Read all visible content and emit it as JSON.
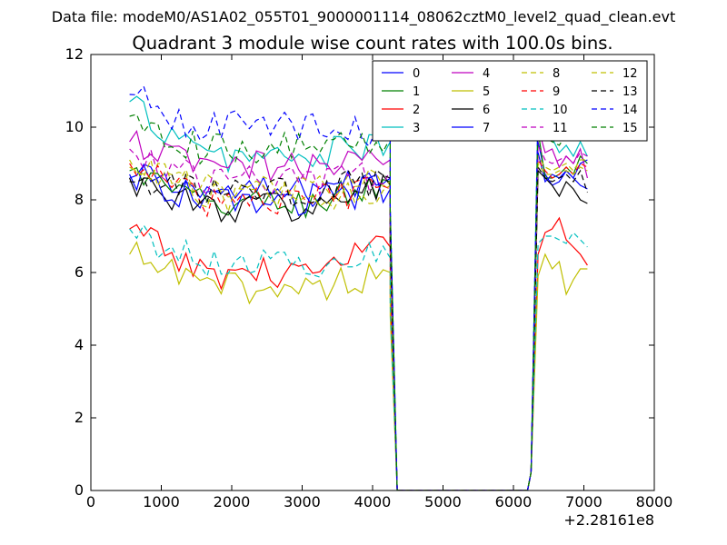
{
  "suptitle": "Data file: modeM0/AS1A02_055T01_9000001114_08062cztM0_level2_quad_clean.evt",
  "chart_data": {
    "type": "line",
    "title": "Quadrant 3 module wise count rates with 100.0s bins.",
    "xlabel": "",
    "ylabel": "",
    "x_offset_label": "+2.28161e8",
    "xlim": [
      0,
      8000
    ],
    "ylim": [
      0,
      12
    ],
    "xticks": [
      "0",
      "1000",
      "2000",
      "3000",
      "4000",
      "5000",
      "6000",
      "7000",
      "8000"
    ],
    "yticks": [
      "0",
      "2",
      "4",
      "6",
      "8",
      "10",
      "12"
    ],
    "grid": false,
    "legend_position": "top-right",
    "x_groups": {
      "segment1_start": 550,
      "segment1_step": 100,
      "segment1_count": 38,
      "drop": [
        4250,
        4350
      ],
      "segment2": [
        6250,
        6350,
        6450,
        6550,
        6650,
        6750,
        6850,
        6950,
        7050
      ]
    },
    "series": [
      {
        "name": "0",
        "color": "#0000ff",
        "dash": "solid",
        "base1": 8.2,
        "start": 8.6,
        "last": 8.6,
        "after": [
          0.5,
          9.6,
          8.7,
          8.4,
          8.5,
          8.8,
          8.6,
          9.0,
          9.1
        ]
      },
      {
        "name": "1",
        "color": "#008000",
        "dash": "solid",
        "base1": 7.9,
        "start": 8.8,
        "last": 8.5,
        "after": [
          0.5,
          9.9,
          8.6,
          8.6,
          8.7,
          8.9,
          8.7,
          9.2,
          9.0
        ]
      },
      {
        "name": "2",
        "color": "#ff0000",
        "dash": "solid",
        "base1": 6.0,
        "start": 7.2,
        "last": 6.7,
        "after": [
          0.5,
          6.5,
          7.1,
          7.2,
          7.5,
          6.9,
          6.7,
          6.5,
          6.2
        ]
      },
      {
        "name": "3",
        "color": "#00bfbf",
        "dash": "solid",
        "base1": 9.2,
        "start": 10.7,
        "last": 9.6,
        "after": [
          0.5,
          10.6,
          9.9,
          9.7,
          9.3,
          9.5,
          9.2,
          9.6,
          9.2
        ]
      },
      {
        "name": "4",
        "color": "#bf00bf",
        "dash": "solid",
        "base1": 8.9,
        "start": 9.6,
        "last": 9.1,
        "after": [
          0.5,
          10.0,
          9.3,
          9.4,
          8.9,
          9.2,
          9.0,
          9.4,
          8.6
        ]
      },
      {
        "name": "5",
        "color": "#bfbf00",
        "dash": "solid",
        "base1": 5.6,
        "start": 6.5,
        "last": 6.0,
        "after": [
          0.5,
          5.9,
          6.5,
          6.1,
          6.3,
          5.4,
          5.8,
          6.1,
          6.1
        ]
      },
      {
        "name": "6",
        "color": "#000000",
        "dash": "solid",
        "base1": 7.8,
        "start": 8.6,
        "last": 8.4,
        "after": [
          0.5,
          8.8,
          8.6,
          8.4,
          8.1,
          8.5,
          8.3,
          8.0,
          7.9
        ]
      },
      {
        "name": "7",
        "color": "#0000ff",
        "dash": "solid",
        "base1": 8.0,
        "start": 8.7,
        "last": 8.3,
        "after": [
          0.5,
          9.3,
          8.5,
          8.7,
          8.6,
          8.8,
          8.6,
          8.4,
          8.3
        ]
      },
      {
        "name": "8",
        "color": "#bfbf00",
        "dash": "dashed",
        "base1": 8.3,
        "start": 9.1,
        "last": 8.5,
        "after": [
          0.5,
          9.2,
          8.9,
          8.8,
          8.9,
          9.0,
          8.8,
          9.1,
          9.1
        ]
      },
      {
        "name": "9",
        "color": "#ff0000",
        "dash": "dashed",
        "base1": 8.0,
        "start": 9.0,
        "last": 8.3,
        "after": [
          0.5,
          9.1,
          8.8,
          8.6,
          8.7,
          8.9,
          8.7,
          9.0,
          8.9
        ]
      },
      {
        "name": "10",
        "color": "#00bfbf",
        "dash": "dashed",
        "base1": 6.3,
        "start": 7.2,
        "last": 6.4,
        "after": [
          0.5,
          6.8,
          7.0,
          7.0,
          6.9,
          6.8,
          7.1,
          6.9,
          6.7
        ]
      },
      {
        "name": "11",
        "color": "#bf00bf",
        "dash": "dashed",
        "base1": 8.5,
        "start": 9.4,
        "last": 8.8,
        "after": [
          0.5,
          9.5,
          9.1,
          9.0,
          9.1,
          9.2,
          9.0,
          9.3,
          9.2
        ]
      },
      {
        "name": "12",
        "color": "#bfbf00",
        "dash": "dashed",
        "base1": 8.1,
        "start": 8.9,
        "last": 8.4,
        "after": [
          0.5,
          9.0,
          8.7,
          8.7,
          8.8,
          8.8,
          8.7,
          8.9,
          8.8
        ]
      },
      {
        "name": "13",
        "color": "#000000",
        "dash": "dashed",
        "base1": 8.2,
        "start": 8.5,
        "last": 8.6,
        "after": [
          0.5,
          8.9,
          8.6,
          8.5,
          8.6,
          8.7,
          8.5,
          8.8,
          8.2
        ]
      },
      {
        "name": "14",
        "color": "#0000ff",
        "dash": "dashed",
        "base1": 10.0,
        "start": 10.9,
        "last": 9.8,
        "after": [
          0.5,
          10.5,
          10.0,
          10.1,
          10.0,
          10.2,
          9.9,
          10.3,
          10.4
        ]
      },
      {
        "name": "15",
        "color": "#008000",
        "dash": "dashed",
        "base1": 9.4,
        "start": 10.3,
        "last": 9.7,
        "after": [
          0.5,
          10.2,
          9.7,
          9.6,
          9.5,
          9.8,
          9.6,
          9.9,
          9.9
        ]
      }
    ]
  }
}
